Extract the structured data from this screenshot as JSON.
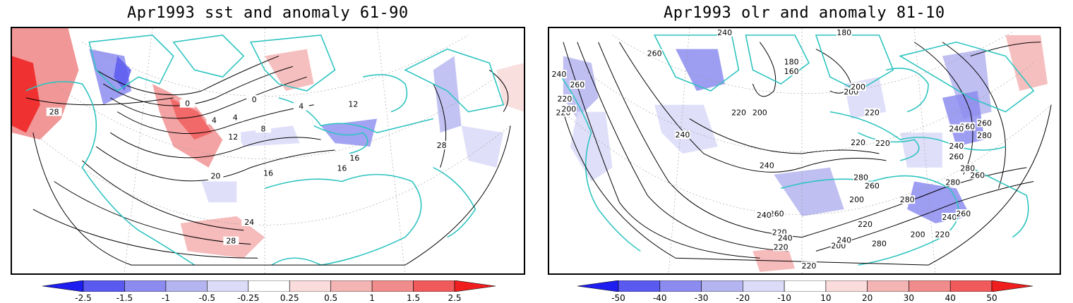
{
  "left_panel": {
    "title": "Apr1993 sst and anomaly 61-90",
    "contour_labels": [
      "28",
      "0",
      "4",
      "0",
      "4",
      "4",
      "8",
      "12",
      "16",
      "20",
      "24",
      "28",
      "16",
      "16",
      "12",
      "28"
    ],
    "colorbar": {
      "ticks": [
        "-2.5",
        "-1.5",
        "-1",
        "-0.5",
        "-0.25",
        "0.25",
        "0.5",
        "1",
        "1.5",
        "2.5"
      ],
      "colors": [
        "#1e1ef0",
        "#5a5af0",
        "#8c8cf0",
        "#b4b4f0",
        "#dcdcf8",
        "#ffffff",
        "#fadcdc",
        "#f5b4b4",
        "#f08c8c",
        "#f05a5a",
        "#f01e1e"
      ]
    }
  },
  "right_panel": {
    "title": "Apr1993 olr and anomaly 81-10",
    "contour_labels": [
      "240",
      "260",
      "220",
      "260",
      "220",
      "200",
      "180",
      "160",
      "180",
      "200",
      "200",
      "240",
      "240",
      "220",
      "240",
      "200",
      "220",
      "220",
      "220",
      "260",
      "260",
      "240",
      "280",
      "240",
      "260",
      "280",
      "280",
      "200",
      "260",
      "280",
      "260",
      "240",
      "220",
      "240",
      "220",
      "200",
      "220",
      "220",
      "200",
      "220",
      "240",
      "260",
      "280",
      "260",
      "240",
      "280"
    ],
    "colorbar": {
      "ticks": [
        "-50",
        "-40",
        "-30",
        "-20",
        "-10",
        "10",
        "20",
        "30",
        "40",
        "50"
      ],
      "colors": [
        "#1e1ef0",
        "#5a5af0",
        "#8c8cf0",
        "#b4b4f0",
        "#dcdcf8",
        "#ffffff",
        "#fadcdc",
        "#f5b4b4",
        "#f08c8c",
        "#f05a5a",
        "#f01e1e"
      ]
    }
  }
}
